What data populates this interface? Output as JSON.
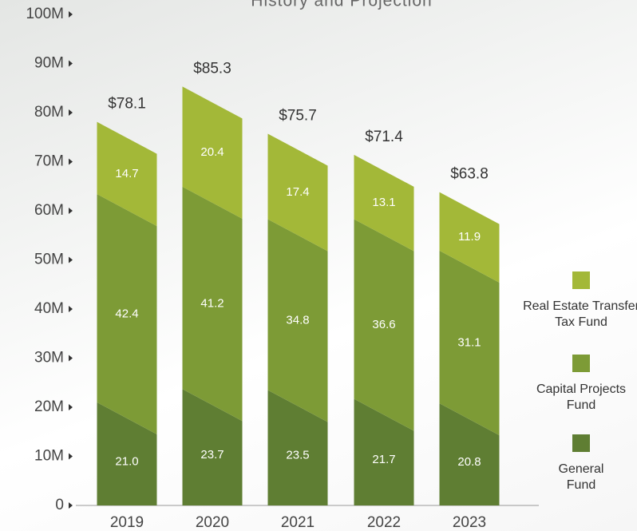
{
  "chart_data": {
    "type": "stacked-bar",
    "title": "History and Projection",
    "categories": [
      "2019",
      "2020",
      "2021",
      "2022",
      "2023"
    ],
    "series": [
      {
        "name": "General Fund",
        "color": "#5f7e33",
        "values": [
          21.0,
          23.7,
          23.5,
          21.7,
          20.8
        ],
        "value_labels": [
          "21.0",
          "23.7",
          "23.5",
          "21.7",
          "20.8"
        ]
      },
      {
        "name": "Capital Projects Fund",
        "color": "#7d9b36",
        "values": [
          42.4,
          41.2,
          34.8,
          36.6,
          31.1
        ],
        "value_labels": [
          "42.4",
          "41.2",
          "34.8",
          "36.6",
          "31.1"
        ]
      },
      {
        "name": "Real Estate Transfer Tax Fund",
        "color": "#a3b838",
        "values": [
          14.7,
          20.4,
          17.4,
          13.1,
          11.9
        ],
        "value_labels": [
          "14.7",
          "20.4",
          "17.4",
          "13.1",
          "11.9"
        ]
      }
    ],
    "totals": [
      78.1,
      85.3,
      75.7,
      71.4,
      63.8
    ],
    "total_labels": [
      "$78.1",
      "$85.3",
      "$75.7",
      "$71.4",
      "$63.8"
    ],
    "ylim": [
      0,
      100
    ],
    "yticks": [
      0,
      {
        "value": 10,
        "label": "10M"
      },
      {
        "value": 20,
        "label": "20M"
      },
      {
        "value": 30,
        "label": "30M"
      },
      {
        "value": 40,
        "label": "40M"
      },
      {
        "value": 50,
        "label": "50M"
      },
      {
        "value": 60,
        "label": "60M"
      },
      {
        "value": 70,
        "label": "70M"
      },
      {
        "value": 80,
        "label": "80M"
      },
      {
        "value": 90,
        "label": "90M"
      },
      {
        "value": 100,
        "label": "100M"
      }
    ],
    "legend": "right"
  }
}
